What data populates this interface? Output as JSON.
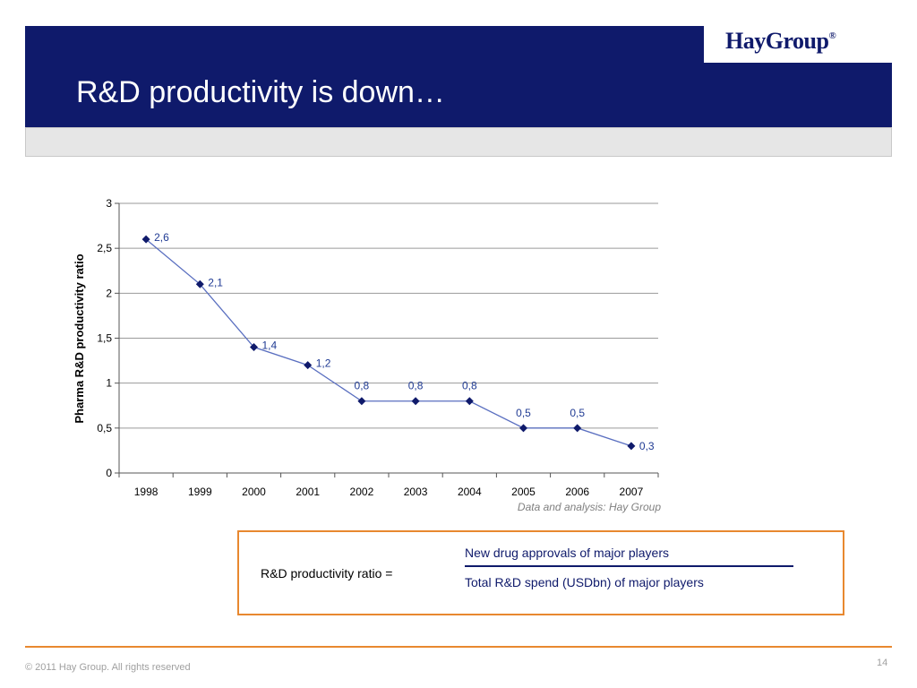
{
  "header": {
    "title": "R&D productivity is down…",
    "logo_text": "HayGroup",
    "logo_mark": "®"
  },
  "colors": {
    "navy": "#0f1a6b",
    "accent_orange": "#e8882f",
    "series_line": "#5a6fc0",
    "marker": "#0f1a6b"
  },
  "chart_data": {
    "type": "line",
    "x": [
      "1998",
      "1999",
      "2000",
      "2001",
      "2002",
      "2003",
      "2004",
      "2005",
      "2006",
      "2007"
    ],
    "series": [
      {
        "values": [
          2.6,
          2.1,
          1.4,
          1.2,
          0.8,
          0.8,
          0.8,
          0.5,
          0.5,
          0.3
        ]
      }
    ],
    "data_labels": [
      "2,6",
      "2,1",
      "1,4",
      "1,2",
      "0,8",
      "0,8",
      "0,8",
      "0,5",
      "0,5",
      "0,3"
    ],
    "ylabel": "Pharma R&D productivity ratio",
    "ylim": [
      0,
      3
    ],
    "yticks": [
      0,
      0.5,
      1,
      1.5,
      2,
      2.5,
      3
    ],
    "ytick_labels": [
      "0",
      "0,5",
      "1",
      "1,5",
      "2",
      "2,5",
      "3"
    ],
    "grid": true,
    "source_note": "Data and analysis: Hay Group"
  },
  "formula": {
    "lhs": "R&D productivity ratio =",
    "numerator": "New drug approvals of major players",
    "denominator": "Total R&D spend (USDbn) of major players"
  },
  "footer": {
    "copyright": "© 2011 Hay Group. All rights reserved",
    "page_number": "14"
  }
}
